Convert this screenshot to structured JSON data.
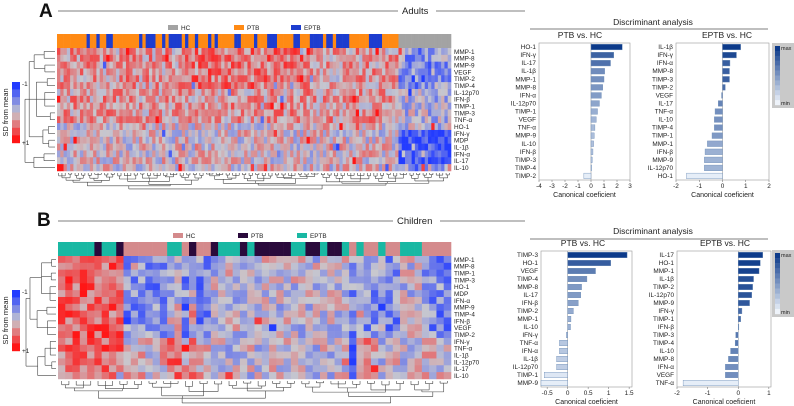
{
  "panels": [
    {
      "letter": "A",
      "title": "Adults",
      "legend": [
        {
          "label": "HC",
          "color": "#a3a3a3"
        },
        {
          "label": "PTB",
          "color": "#ff8a14"
        },
        {
          "label": "EPTB",
          "color": "#1d3dcf"
        }
      ],
      "colorbar": {
        "top": "-1",
        "bottom": "+1",
        "label": "SD from mean"
      },
      "discriminant_title": "Discriminant analysis",
      "scale": {
        "max": "max",
        "min": "min"
      }
    },
    {
      "letter": "B",
      "title": "Children",
      "legend": [
        {
          "label": "HC",
          "color": "#d48a8c"
        },
        {
          "label": "PTB",
          "color": "#2a0a3c"
        },
        {
          "label": "EPTB",
          "color": "#19b8a3"
        }
      ],
      "colorbar": {
        "top": "-1",
        "bottom": "+1",
        "label": "SD from mean"
      },
      "discriminant_title": "Discriminant analysis",
      "scale": {
        "max": "max",
        "min": "min"
      }
    }
  ],
  "chart_data": [
    {
      "type": "heatmap",
      "title": "Adults",
      "column_groups": "PPPPPPPPPEPPEPPEEPPPPPPPPEPEEEPPEPEEEEPEPPEPPPEPEPPPPPEEPPPPEPPPEEEPPPPPEEPPPEEEEPEEPEEEEPPPPPPEEEEPPPPPHHHHHHHHHHHHHHHH",
      "group_key": {
        "H": "HC",
        "P": "PTB",
        "E": "EPTB"
      },
      "rows": [
        "MMP-1",
        "MMP-8",
        "MMP-9",
        "VEGF",
        "TIMP-2",
        "TIMP-4",
        "IL-12p70",
        "IFN-β",
        "TIMP-1",
        "TIMP-3",
        "TNF-α",
        "HO-1",
        "IFN-γ",
        "MDP",
        "IL-1β",
        "IFN-α",
        "IL-17",
        "IL-10"
      ],
      "value_range": [
        -1,
        1
      ]
    },
    {
      "type": "bar",
      "title": "PTB vs. HC",
      "xlabel": "Canonical coeficient",
      "xlim": [
        -4,
        3
      ],
      "ticks": [
        "-4",
        "-3",
        "-2",
        "-1",
        "0",
        "1",
        "2",
        "3"
      ],
      "categories": [
        "HO-1",
        "IFN-γ",
        "IL-17",
        "IL-1β",
        "MMP-1",
        "MMP-8",
        "IFN-α",
        "IL-12p70",
        "TIMP-1",
        "VEGF",
        "TNF-α",
        "MMP-9",
        "IL-10",
        "IFN-β",
        "TIMP-3",
        "TIMP-4",
        "TIMP-2"
      ],
      "values": [
        2.4,
        1.75,
        1.5,
        1.05,
        1.0,
        0.9,
        0.8,
        0.65,
        0.5,
        0.4,
        0.3,
        0.25,
        0.2,
        0.15,
        0.1,
        0.02,
        -0.55
      ]
    },
    {
      "type": "bar",
      "title": "EPTB vs. HC",
      "xlabel": "Canonical coeficient",
      "xlim": [
        -2,
        2
      ],
      "ticks": [
        "-2",
        "-1",
        "0",
        "1",
        "2"
      ],
      "categories": [
        "IL-1β",
        "IFN-γ",
        "IFN-α",
        "MMP-8",
        "TIMP-3",
        "TIMP-2",
        "VEGF",
        "IL-17",
        "TNF-α",
        "IL-10",
        "TIMP-4",
        "TIMP-1",
        "MMP-1",
        "IFN-β",
        "MMP-9",
        "IL-12p70",
        "HO-1"
      ],
      "values": [
        0.78,
        0.6,
        0.32,
        0.3,
        0.3,
        0.12,
        -0.04,
        -0.18,
        -0.32,
        -0.35,
        -0.35,
        -0.45,
        -0.65,
        -0.75,
        -0.78,
        -0.78,
        -1.55
      ]
    },
    {
      "type": "heatmap",
      "title": "Children",
      "column_groups": "EEEEEPEEPHHHHHHEEHPHHPEEEPEPPPPPEEPPEPPEHEHHEHHEEEHHHH",
      "group_key": {
        "H": "HC",
        "P": "PTB",
        "E": "EPTB"
      },
      "rows": [
        "MMP-1",
        "MMP-8",
        "TIMP-1",
        "TIMP-3",
        "HO-1",
        "MDP",
        "IFN-α",
        "MMP-9",
        "TIMP-4",
        "IFN-β",
        "VEGF",
        "TIMP-2",
        "IFN-γ",
        "TNF-α",
        "IL-1β",
        "IL-12p70",
        "IL-17",
        "IL-10"
      ],
      "value_range": [
        -1,
        1
      ]
    },
    {
      "type": "bar",
      "title": "PTB vs. HC",
      "xlabel": "Canonical coeficient",
      "xlim": [
        -0.65,
        1.57
      ],
      "ticks": [
        "-0.5",
        "0",
        "0.5",
        "1",
        "1.5"
      ],
      "categories": [
        "TIMP-3",
        "HO-1",
        "VEGF",
        "TIMP-4",
        "MMP-8",
        "IL-17",
        "IFN-β",
        "TIMP-2",
        "MMP-1",
        "IL-10",
        "IFN-γ",
        "TNF-α",
        "IFN-α",
        "IL-1β",
        "IL-12p70",
        "TIMP-1",
        "MMP-9"
      ],
      "values": [
        1.45,
        1.05,
        0.68,
        0.47,
        0.34,
        0.32,
        0.26,
        0.14,
        0.08,
        0.07,
        -0.03,
        -0.2,
        -0.2,
        -0.27,
        -0.27,
        -0.57,
        -0.65
      ]
    },
    {
      "type": "bar",
      "title": "EPTB vs. HC",
      "xlabel": "Canonical coeficient",
      "xlim": [
        -2,
        1.07
      ],
      "ticks": [
        "-2",
        "-1",
        "0",
        "1"
      ],
      "categories": [
        "IL-17",
        "HO-1",
        "MMP-1",
        "IL-1β",
        "TIMP-2",
        "IL-12p70",
        "MMP-9",
        "IFN-γ",
        "TIMP-1",
        "IFN-β",
        "TIMP-3",
        "TIMP-4",
        "IL-10",
        "MMP-8",
        "IFN-α",
        "VEGF",
        "TNF-α"
      ],
      "values": [
        0.8,
        0.72,
        0.68,
        0.5,
        0.47,
        0.44,
        0.37,
        0.12,
        0.08,
        0.02,
        -0.08,
        -0.1,
        -0.25,
        -0.32,
        -0.42,
        -0.42,
        -1.8
      ]
    }
  ]
}
